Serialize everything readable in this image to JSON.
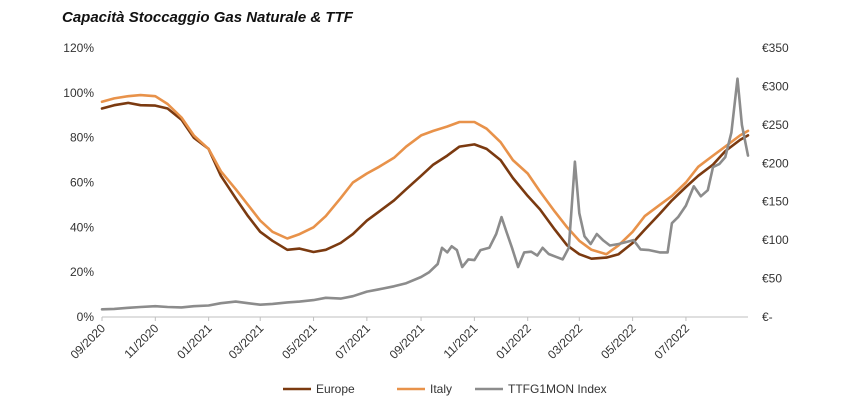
{
  "chart_data": {
    "type": "line",
    "title": "Capacità Stoccaggio Gas Naturale & TTF",
    "x_tick_labels": [
      "09/2020",
      "11/2020",
      "01/2021",
      "03/2021",
      "05/2021",
      "07/2021",
      "09/2021",
      "11/2021",
      "01/2022",
      "03/2022",
      "05/2022",
      "07/2022"
    ],
    "y_left": {
      "ticks": [
        "0%",
        "20%",
        "40%",
        "60%",
        "80%",
        "100%",
        "120%"
      ],
      "range": [
        0,
        120
      ],
      "unit": "%"
    },
    "y_right": {
      "ticks": [
        "€-",
        "€50",
        "€100",
        "€150",
        "€200",
        "€250",
        "€300",
        "€350"
      ],
      "range": [
        0,
        350
      ],
      "unit": "€/MWh"
    },
    "x_range": [
      "2020-09-01",
      "2022-09-10"
    ],
    "grid": false,
    "legend_position": "bottom",
    "series": [
      {
        "name": "Europe",
        "color": "#7b3a10",
        "axis": "left",
        "points": [
          [
            "2020-09-01",
            93
          ],
          [
            "2020-09-15",
            94.5
          ],
          [
            "2020-10-01",
            95.5
          ],
          [
            "2020-10-15",
            94.5
          ],
          [
            "2020-11-01",
            94.3
          ],
          [
            "2020-11-15",
            93
          ],
          [
            "2020-12-01",
            88
          ],
          [
            "2020-12-15",
            80
          ],
          [
            "2021-01-01",
            75
          ],
          [
            "2021-01-15",
            63
          ],
          [
            "2021-02-01",
            53
          ],
          [
            "2021-02-15",
            45
          ],
          [
            "2021-03-01",
            38
          ],
          [
            "2021-03-15",
            34
          ],
          [
            "2021-04-01",
            30
          ],
          [
            "2021-04-15",
            30.5
          ],
          [
            "2021-05-01",
            29
          ],
          [
            "2021-05-15",
            30
          ],
          [
            "2021-06-01",
            33
          ],
          [
            "2021-06-15",
            37
          ],
          [
            "2021-07-01",
            43
          ],
          [
            "2021-07-15",
            47
          ],
          [
            "2021-08-01",
            52
          ],
          [
            "2021-08-15",
            57
          ],
          [
            "2021-09-01",
            63
          ],
          [
            "2021-09-15",
            68
          ],
          [
            "2021-10-01",
            72
          ],
          [
            "2021-10-15",
            76
          ],
          [
            "2021-11-01",
            77
          ],
          [
            "2021-11-15",
            75
          ],
          [
            "2021-12-01",
            70
          ],
          [
            "2021-12-15",
            62
          ],
          [
            "2022-01-01",
            54
          ],
          [
            "2022-01-15",
            48
          ],
          [
            "2022-02-01",
            39
          ],
          [
            "2022-02-15",
            32
          ],
          [
            "2022-03-01",
            28
          ],
          [
            "2022-03-15",
            26
          ],
          [
            "2022-04-01",
            26.5
          ],
          [
            "2022-04-15",
            28
          ],
          [
            "2022-05-01",
            33
          ],
          [
            "2022-05-15",
            39
          ],
          [
            "2022-06-01",
            46
          ],
          [
            "2022-06-15",
            52
          ],
          [
            "2022-07-01",
            58
          ],
          [
            "2022-07-15",
            63
          ],
          [
            "2022-08-01",
            68
          ],
          [
            "2022-08-15",
            74
          ],
          [
            "2022-09-01",
            79
          ],
          [
            "2022-09-10",
            81
          ]
        ]
      },
      {
        "name": "Italy",
        "color": "#e8924a",
        "axis": "left",
        "points": [
          [
            "2020-09-01",
            96
          ],
          [
            "2020-09-15",
            97.5
          ],
          [
            "2020-10-01",
            98.5
          ],
          [
            "2020-10-15",
            99
          ],
          [
            "2020-11-01",
            98.5
          ],
          [
            "2020-11-15",
            95
          ],
          [
            "2020-12-01",
            89
          ],
          [
            "2020-12-15",
            81
          ],
          [
            "2021-01-01",
            75
          ],
          [
            "2021-01-15",
            65
          ],
          [
            "2021-02-01",
            57
          ],
          [
            "2021-02-15",
            50
          ],
          [
            "2021-03-01",
            43
          ],
          [
            "2021-03-15",
            38
          ],
          [
            "2021-04-01",
            35
          ],
          [
            "2021-04-15",
            37
          ],
          [
            "2021-05-01",
            40
          ],
          [
            "2021-05-15",
            45
          ],
          [
            "2021-06-01",
            53
          ],
          [
            "2021-06-15",
            60
          ],
          [
            "2021-07-01",
            64
          ],
          [
            "2021-07-15",
            67
          ],
          [
            "2021-08-01",
            71
          ],
          [
            "2021-08-15",
            76
          ],
          [
            "2021-09-01",
            81
          ],
          [
            "2021-09-15",
            83
          ],
          [
            "2021-10-01",
            85
          ],
          [
            "2021-10-15",
            87
          ],
          [
            "2021-11-01",
            87
          ],
          [
            "2021-11-15",
            84
          ],
          [
            "2021-12-01",
            78
          ],
          [
            "2021-12-15",
            70
          ],
          [
            "2022-01-01",
            64
          ],
          [
            "2022-01-15",
            56
          ],
          [
            "2022-02-01",
            47
          ],
          [
            "2022-02-15",
            40
          ],
          [
            "2022-03-01",
            34
          ],
          [
            "2022-03-15",
            30
          ],
          [
            "2022-04-01",
            28
          ],
          [
            "2022-04-15",
            32
          ],
          [
            "2022-05-01",
            38
          ],
          [
            "2022-05-15",
            45
          ],
          [
            "2022-06-01",
            50
          ],
          [
            "2022-06-15",
            54
          ],
          [
            "2022-07-01",
            60
          ],
          [
            "2022-07-15",
            67
          ],
          [
            "2022-08-01",
            72
          ],
          [
            "2022-08-15",
            76
          ],
          [
            "2022-09-01",
            81
          ],
          [
            "2022-09-10",
            83
          ]
        ]
      },
      {
        "name": "TTFG1MON Index",
        "color": "#8c8c8c",
        "axis": "right",
        "points": [
          [
            "2020-09-01",
            10
          ],
          [
            "2020-09-15",
            10.5
          ],
          [
            "2020-10-01",
            12
          ],
          [
            "2020-10-15",
            13
          ],
          [
            "2020-11-01",
            14
          ],
          [
            "2020-11-15",
            13
          ],
          [
            "2020-12-01",
            12.5
          ],
          [
            "2020-12-15",
            14
          ],
          [
            "2021-01-01",
            15
          ],
          [
            "2021-01-15",
            18
          ],
          [
            "2021-02-01",
            20
          ],
          [
            "2021-02-15",
            18
          ],
          [
            "2021-03-01",
            16
          ],
          [
            "2021-03-15",
            17
          ],
          [
            "2021-04-01",
            19
          ],
          [
            "2021-04-15",
            20
          ],
          [
            "2021-05-01",
            22
          ],
          [
            "2021-05-15",
            25
          ],
          [
            "2021-06-01",
            24
          ],
          [
            "2021-06-15",
            27
          ],
          [
            "2021-07-01",
            33
          ],
          [
            "2021-07-15",
            36
          ],
          [
            "2021-08-01",
            40
          ],
          [
            "2021-08-15",
            44
          ],
          [
            "2021-09-01",
            52
          ],
          [
            "2021-09-10",
            58
          ],
          [
            "2021-09-20",
            69
          ],
          [
            "2021-09-25",
            90
          ],
          [
            "2021-10-01",
            84
          ],
          [
            "2021-10-06",
            92
          ],
          [
            "2021-10-12",
            87
          ],
          [
            "2021-10-18",
            65
          ],
          [
            "2021-10-25",
            75
          ],
          [
            "2021-11-01",
            74
          ],
          [
            "2021-11-08",
            87
          ],
          [
            "2021-11-18",
            90
          ],
          [
            "2021-11-26",
            108
          ],
          [
            "2021-12-02",
            130
          ],
          [
            "2021-12-08",
            110
          ],
          [
            "2021-12-14",
            90
          ],
          [
            "2021-12-21",
            65
          ],
          [
            "2021-12-28",
            84
          ],
          [
            "2022-01-05",
            85
          ],
          [
            "2022-01-12",
            80
          ],
          [
            "2022-01-18",
            90
          ],
          [
            "2022-01-25",
            82
          ],
          [
            "2022-02-03",
            78
          ],
          [
            "2022-02-10",
            75
          ],
          [
            "2022-02-17",
            90
          ],
          [
            "2022-02-24",
            202
          ],
          [
            "2022-03-01",
            135
          ],
          [
            "2022-03-07",
            105
          ],
          [
            "2022-03-14",
            95
          ],
          [
            "2022-03-21",
            108
          ],
          [
            "2022-03-28",
            100
          ],
          [
            "2022-04-05",
            93
          ],
          [
            "2022-04-15",
            95
          ],
          [
            "2022-04-25",
            98
          ],
          [
            "2022-05-02",
            100
          ],
          [
            "2022-05-10",
            88
          ],
          [
            "2022-05-20",
            87
          ],
          [
            "2022-06-01",
            84
          ],
          [
            "2022-06-10",
            84
          ],
          [
            "2022-06-15",
            122
          ],
          [
            "2022-06-22",
            130
          ],
          [
            "2022-07-01",
            145
          ],
          [
            "2022-07-10",
            170
          ],
          [
            "2022-07-18",
            157
          ],
          [
            "2022-07-26",
            165
          ],
          [
            "2022-08-01",
            195
          ],
          [
            "2022-08-08",
            199
          ],
          [
            "2022-08-15",
            208
          ],
          [
            "2022-08-22",
            240
          ],
          [
            "2022-08-29",
            310
          ],
          [
            "2022-09-03",
            250
          ],
          [
            "2022-09-10",
            210
          ]
        ]
      }
    ]
  }
}
